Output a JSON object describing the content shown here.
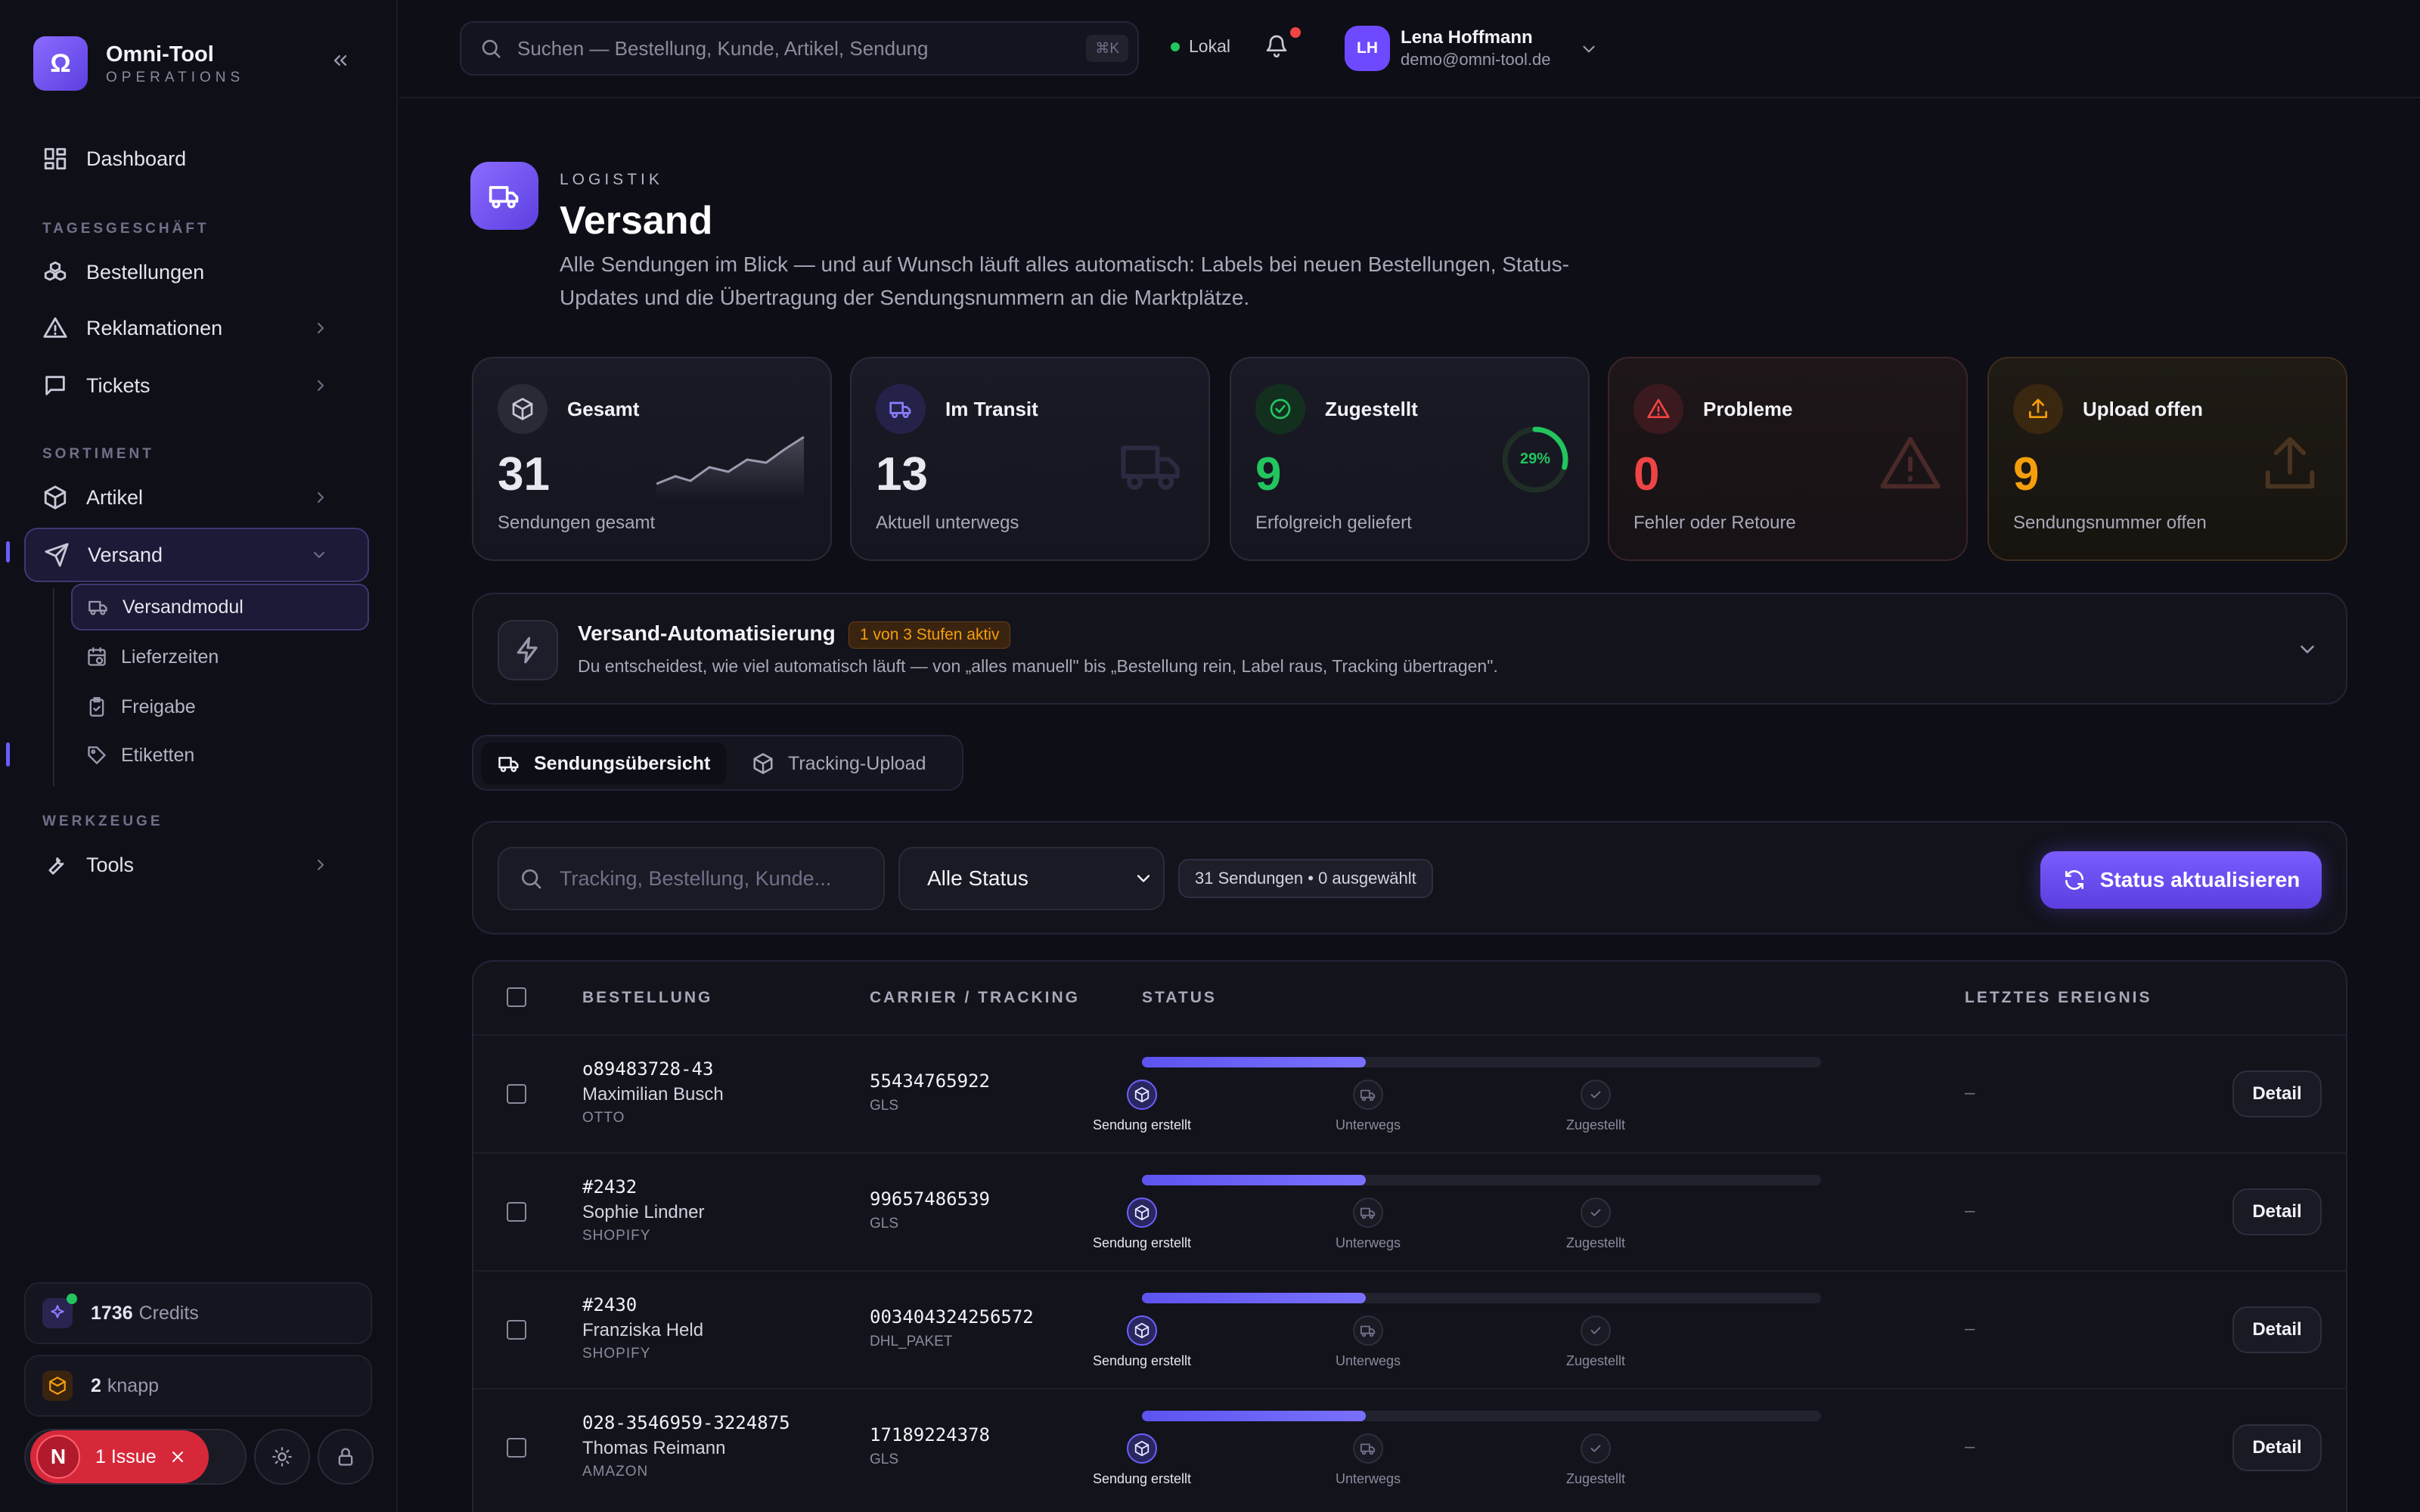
{
  "app": {
    "name": "Omni-Tool",
    "subtitle": "OPERATIONS",
    "logo_glyph": "Ω"
  },
  "sidebar": {
    "dashboard": "Dashboard",
    "sections": {
      "daily": "TAGESGESCHÄFT",
      "assortment": "SORTIMENT",
      "tools": "WERKZEUGE"
    },
    "items": {
      "orders": "Bestellungen",
      "complaints": "Reklamationen",
      "tickets": "Tickets",
      "articles": "Artikel",
      "shipping": "Versand",
      "tools": "Tools"
    },
    "sub_items": [
      "Versandmodul",
      "Lieferzeiten",
      "Freigabe",
      "Etiketten"
    ],
    "credits": {
      "value": "1736",
      "label": "Credits"
    },
    "knapp": {
      "value": "2",
      "label": "knapp"
    },
    "issue": {
      "avatar": "N",
      "label": "1 Issue"
    }
  },
  "topbar": {
    "search_placeholder": "Suchen — Bestellung, Kunde, Artikel, Sendung",
    "shortcut": "⌘K",
    "env": "Lokal",
    "user": {
      "initials": "LH",
      "name": "Lena Hoffmann",
      "email": "demo@omni-tool.de"
    }
  },
  "header": {
    "eyebrow": "LOGISTIK",
    "title": "Versand",
    "description": "Alle Sendungen im Blick — und auf Wunsch läuft alles automatisch: Labels bei neuen Bestellungen, Status-Updates und die Übertragung der Sendungsnummern an die Marktplätze."
  },
  "stats": [
    {
      "label": "Gesamt",
      "value": "31",
      "sub": "Sendungen gesamt",
      "color": "#ffffff"
    },
    {
      "label": "Im Transit",
      "value": "13",
      "sub": "Aktuell unterwegs",
      "color": "#ffffff"
    },
    {
      "label": "Zugestellt",
      "value": "9",
      "sub": "Erfolgreich geliefert",
      "color": "#22c55e",
      "ring_percent": "29%"
    },
    {
      "label": "Probleme",
      "value": "0",
      "sub": "Fehler oder Retoure",
      "color": "#ef4444"
    },
    {
      "label": "Upload offen",
      "value": "9",
      "sub": "Sendungsnummer offen",
      "color": "#f59e0b"
    }
  ],
  "automation": {
    "title": "Versand-Automatisierung",
    "badge": "1 von 3 Stufen aktiv",
    "description": "Du entscheidest, wie viel automatisch läuft — von „alles manuell\" bis „Bestellung rein, Label raus, Tracking übertragen\"."
  },
  "tabs": [
    {
      "label": "Sendungsübersicht",
      "active": true
    },
    {
      "label": "Tracking-Upload",
      "active": false
    }
  ],
  "filter": {
    "search_placeholder": "Tracking, Bestellung, Kunde...",
    "status_selected": "Alle Status",
    "count": "31 Sendungen • 0 ausgewählt",
    "refresh_label": "Status aktualisieren"
  },
  "table": {
    "headers": {
      "order": "BESTELLUNG",
      "carrier": "CARRIER / TRACKING",
      "status": "STATUS",
      "event": "LETZTES EREIGNIS"
    },
    "steps": [
      "Sendung erstellt",
      "Unterwegs",
      "Zugestellt"
    ],
    "detail_label": "Detail",
    "rows": [
      {
        "order": "o89483728-43",
        "customer": "Maximilian Busch",
        "shop": "OTTO",
        "tracking": "55434765922",
        "carrier": "GLS",
        "progress": 0.33,
        "event": "–"
      },
      {
        "order": "#2432",
        "customer": "Sophie Lindner",
        "shop": "SHOPIFY",
        "tracking": "99657486539",
        "carrier": "GLS",
        "progress": 0.33,
        "event": "–"
      },
      {
        "order": "#2430",
        "customer": "Franziska Held",
        "shop": "SHOPIFY",
        "tracking": "003404324256572",
        "carrier": "DHL_PAKET",
        "progress": 0.33,
        "event": "–"
      },
      {
        "order": "028-3546959-3224875",
        "customer": "Thomas Reimann",
        "shop": "AMAZON",
        "tracking": "17189224378",
        "carrier": "GLS",
        "progress": 0.33,
        "event": "–"
      }
    ]
  }
}
